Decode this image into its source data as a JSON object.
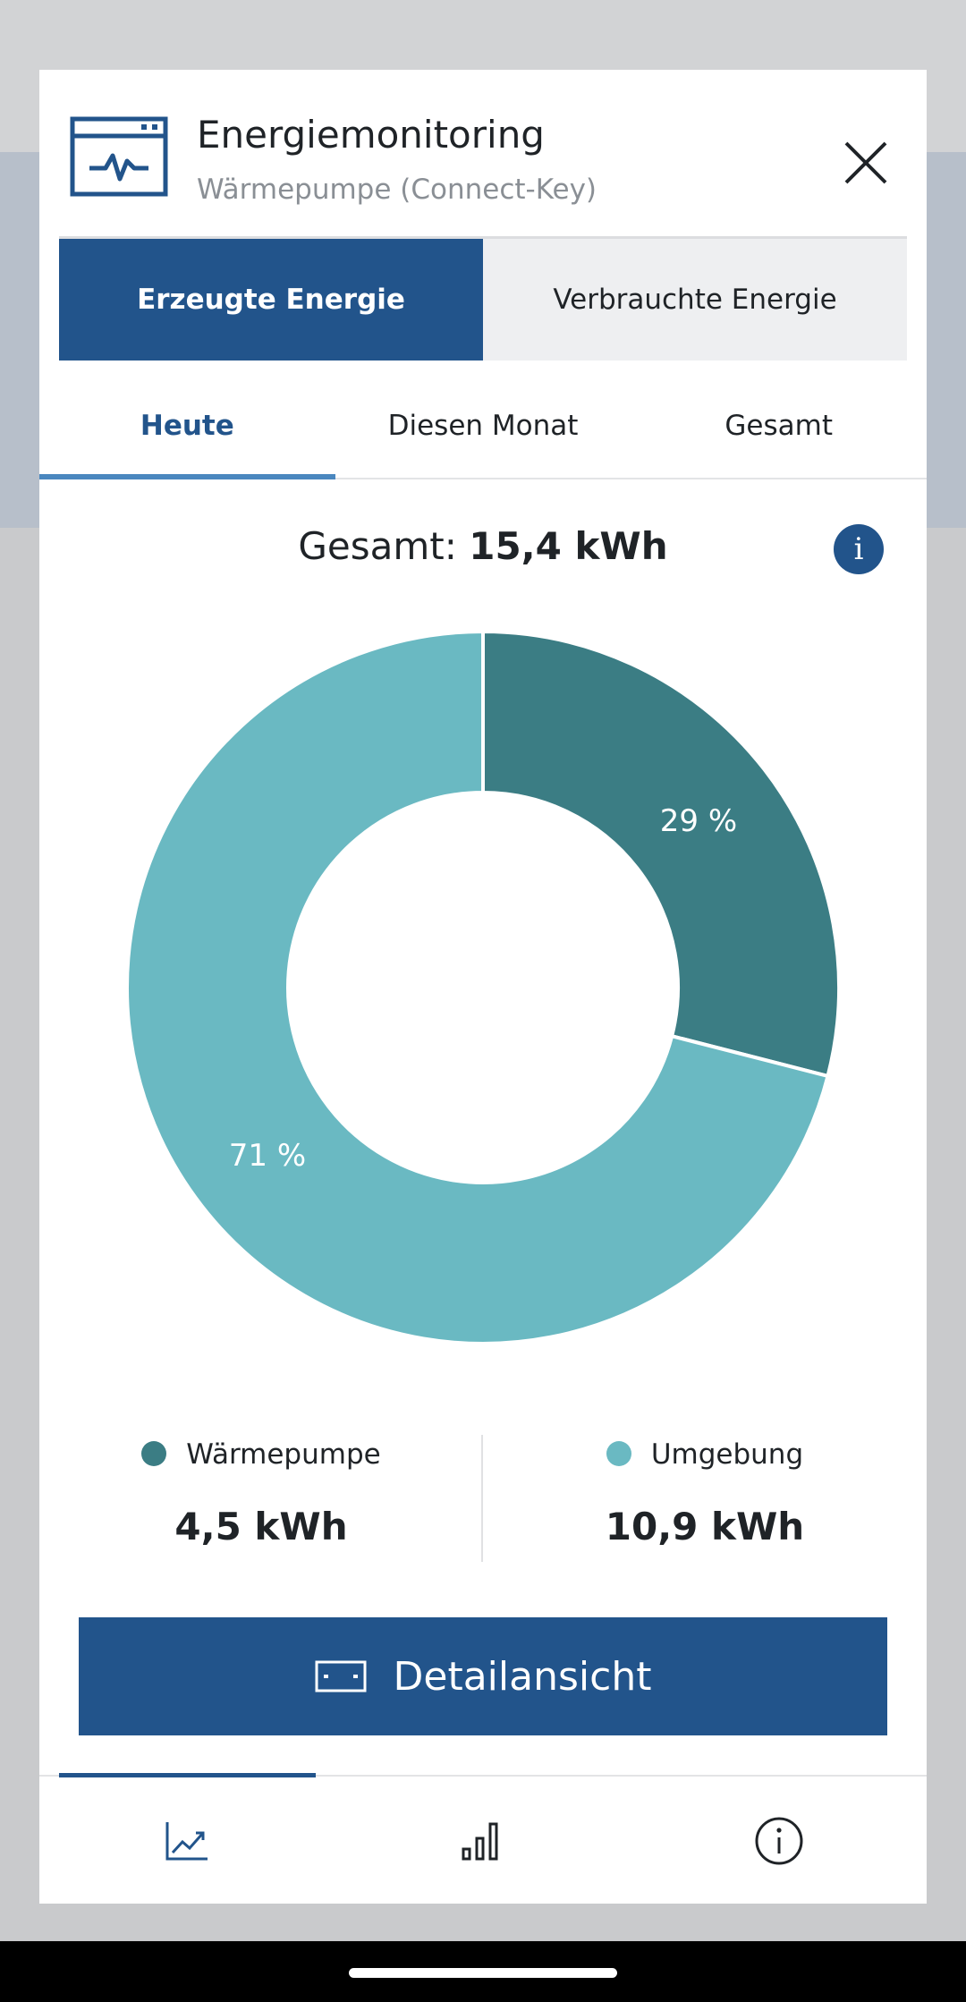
{
  "header": {
    "title": "Energiemonitoring",
    "subtitle": "Wärmepumpe (Connect-Key)",
    "icon": "monitor-pulse-icon"
  },
  "segmented": {
    "options": [
      "Erzeugte Energie",
      "Verbrauchte Energie"
    ],
    "active": 0
  },
  "period_tabs": {
    "options": [
      "Heute",
      "Diesen Monat",
      "Gesamt"
    ],
    "active": 0
  },
  "total": {
    "label": "Gesamt:",
    "value": "15,4 kWh"
  },
  "chart_data": {
    "type": "pie",
    "categories": [
      "Wärmepumpe",
      "Umgebung"
    ],
    "values": [
      29,
      71
    ],
    "labels": [
      "29 %",
      "71 %"
    ],
    "colors": [
      "#3b7d84",
      "#6ab9c2"
    ]
  },
  "legend": [
    {
      "name": "Wärmepumpe",
      "value": "4,5 kWh",
      "color": "#3b7d84"
    },
    {
      "name": "Umgebung",
      "value": "10,9 kWh",
      "color": "#6ab9c2"
    }
  ],
  "detail_button": {
    "label": "Detailansicht"
  },
  "colors": {
    "primary": "#22548b",
    "accent_line": "#4a87bf"
  }
}
